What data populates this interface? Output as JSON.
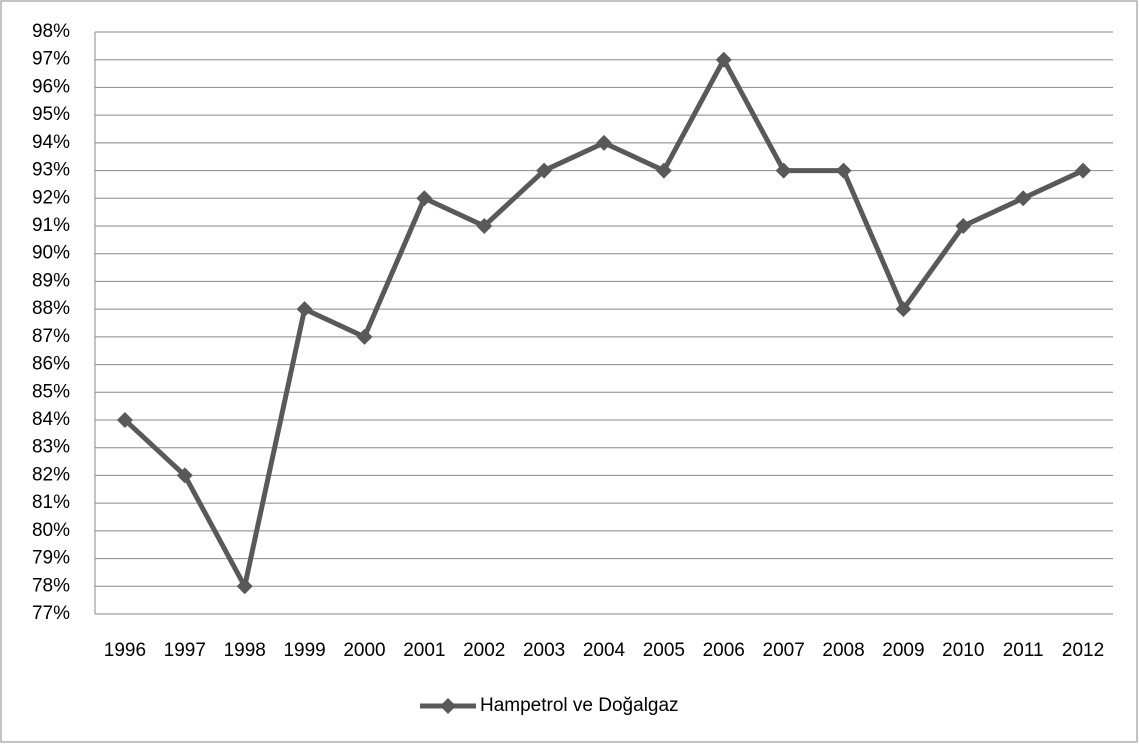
{
  "chart_data": {
    "type": "line",
    "categories": [
      "1996",
      "1997",
      "1998",
      "1999",
      "2000",
      "2001",
      "2002",
      "2003",
      "2004",
      "2005",
      "2006",
      "2007",
      "2008",
      "2009",
      "2010",
      "2011",
      "2012"
    ],
    "series": [
      {
        "name": "Hampetrol ve Doğalgaz",
        "color": "#595959",
        "values": [
          84,
          82,
          78,
          88,
          87,
          92,
          91,
          93,
          94,
          93,
          97,
          93,
          93,
          88,
          91,
          92,
          93
        ]
      }
    ],
    "ylim": [
      77,
      98
    ],
    "yticks": [
      {
        "value": 77,
        "label": "77%"
      },
      {
        "value": 78,
        "label": "78%"
      },
      {
        "value": 79,
        "label": "79%"
      },
      {
        "value": 80,
        "label": "80%"
      },
      {
        "value": 81,
        "label": "81%"
      },
      {
        "value": 82,
        "label": "82%"
      },
      {
        "value": 83,
        "label": "83%"
      },
      {
        "value": 84,
        "label": "84%"
      },
      {
        "value": 85,
        "label": "85%"
      },
      {
        "value": 86,
        "label": "86%"
      },
      {
        "value": 87,
        "label": "87%"
      },
      {
        "value": 88,
        "label": "88%"
      },
      {
        "value": 89,
        "label": "89%"
      },
      {
        "value": 90,
        "label": "90%"
      },
      {
        "value": 91,
        "label": "91%"
      },
      {
        "value": 92,
        "label": "92%"
      },
      {
        "value": 93,
        "label": "93%"
      },
      {
        "value": 94,
        "label": "94%"
      },
      {
        "value": 95,
        "label": "95%"
      },
      {
        "value": 96,
        "label": "96%"
      },
      {
        "value": 97,
        "label": "97%"
      },
      {
        "value": 98,
        "label": "98%"
      }
    ],
    "grid": true,
    "legend": "bottom"
  }
}
